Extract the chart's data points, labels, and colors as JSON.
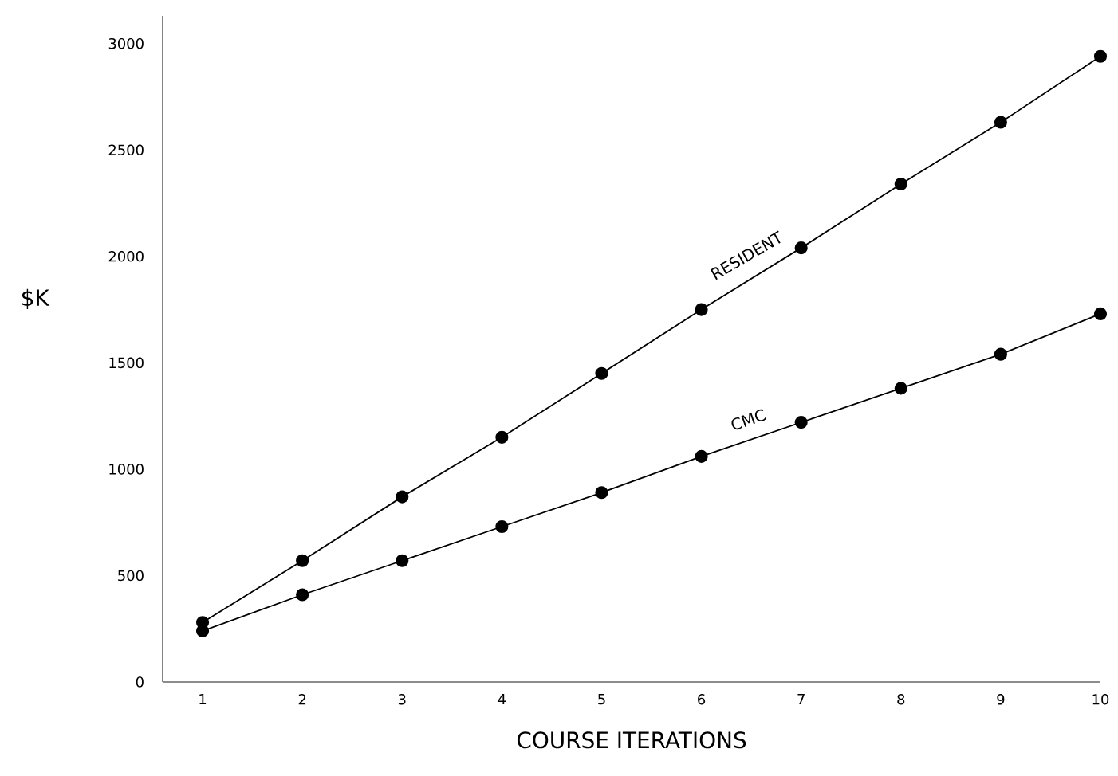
{
  "chart_data": {
    "type": "line",
    "xlabel": "COURSE ITERATIONS",
    "ylabel": "$K",
    "x": [
      1,
      2,
      3,
      4,
      5,
      6,
      7,
      8,
      9,
      10
    ],
    "series": [
      {
        "name": "RESIDENT",
        "color": "#000000",
        "values": [
          280,
          570,
          870,
          1150,
          1450,
          1750,
          2040,
          2340,
          2630,
          2940
        ]
      },
      {
        "name": "CMC",
        "color": "#000000",
        "values": [
          240,
          410,
          570,
          730,
          890,
          1060,
          1220,
          1380,
          1540,
          1730
        ]
      }
    ],
    "xlim": [
      0.6,
      10
    ],
    "ylim": [
      0,
      3130
    ],
    "xticks": [
      1,
      2,
      3,
      4,
      5,
      6,
      7,
      8,
      9,
      10
    ],
    "yticks": [
      0,
      500,
      1000,
      1500,
      2000,
      2500,
      3000
    ],
    "marker": "circle",
    "line_style": "solid",
    "grid": false
  }
}
